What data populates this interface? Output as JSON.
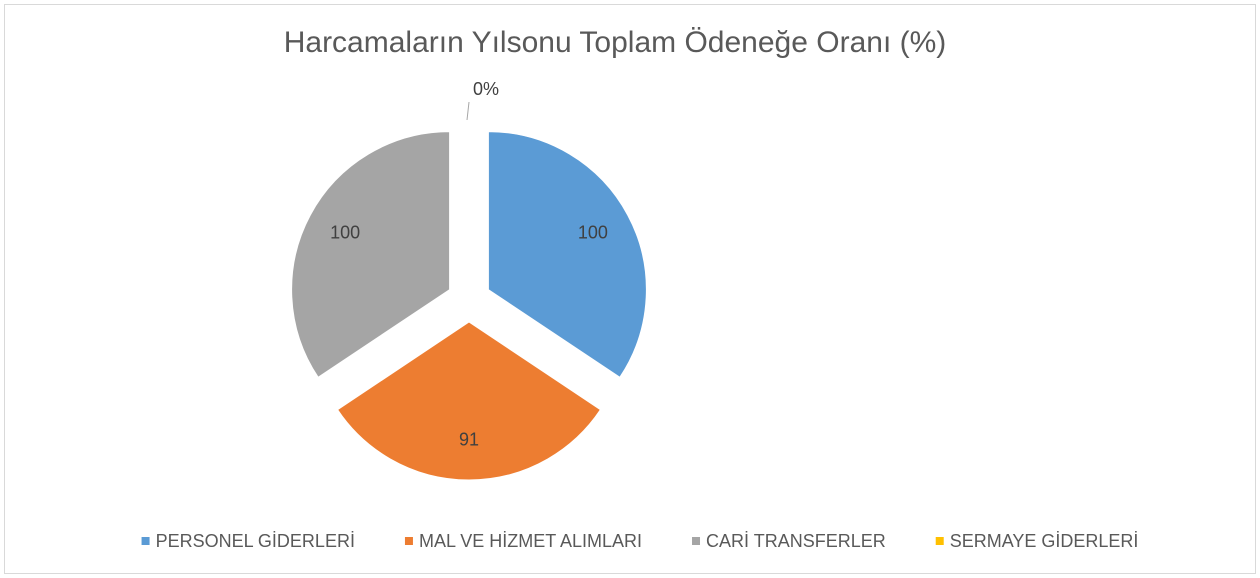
{
  "chart_data": {
    "type": "pie",
    "title": "Harcamaların Yılsonu Toplam Ödeneğe Oranı (%)",
    "categories": [
      "PERSONEL GİDERLERİ",
      "MAL VE HİZMET ALIMLARI",
      "CARİ TRANSFERLER",
      "SERMAYE GİDERLERİ"
    ],
    "values": [
      100,
      91,
      100,
      0
    ],
    "value_labels": [
      "100",
      "91",
      "100",
      "0%"
    ],
    "colors": [
      "#5b9bd5",
      "#ed7d31",
      "#a5a5a5",
      "#ffc000"
    ],
    "legend": "bottom"
  }
}
